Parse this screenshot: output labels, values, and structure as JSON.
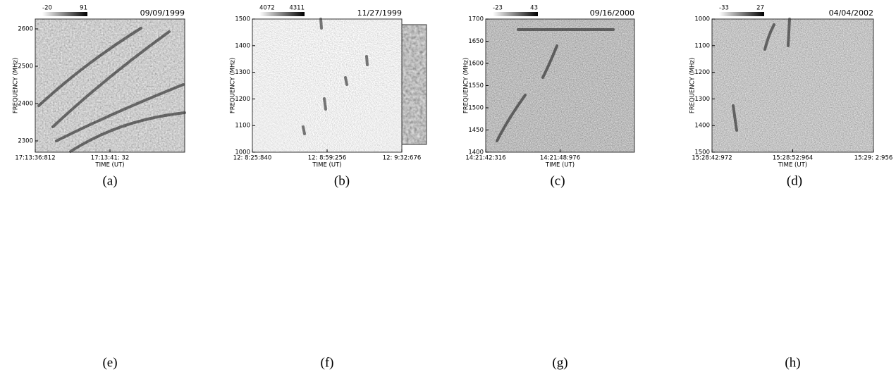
{
  "panels": [
    {
      "caption": "(a)"
    },
    {
      "caption": "(b)"
    },
    {
      "caption": "(c)"
    },
    {
      "caption": "(d)"
    },
    {
      "caption": "(e)",
      "date": "09/09/1999",
      "colorbar": [
        -20,
        91
      ],
      "yticks": [
        "2600",
        "2500",
        "2400",
        "2300"
      ],
      "xticks": [
        "17:13:36:812",
        "17:13:41: 32"
      ],
      "xlabel": "TIME (UT)",
      "ylabel": "FREQUENCY (MHz)"
    },
    {
      "caption": "(f)",
      "date": "11/27/1999",
      "colorbar": [
        4072,
        4311
      ],
      "yticks": [
        "1500",
        "1400",
        "1300",
        "1200",
        "1100",
        "1000"
      ],
      "xticks": [
        "12: 8:25:840",
        "12: 8:59:256",
        "12: 9:32:676"
      ],
      "xlabel": "TIME (UT)",
      "ylabel": "FREQUENCY (MHz)"
    },
    {
      "caption": "(g)",
      "date": "09/16/2000",
      "colorbar": [
        -23,
        43
      ],
      "yticks": [
        "1700",
        "1650",
        "1600",
        "1550",
        "1500",
        "1450",
        "1400"
      ],
      "xticks": [
        "14:21:42:316",
        "14:21:48:976"
      ],
      "xlabel": "TIME (UT)",
      "ylabel": "FREQUENCY (MHz)"
    },
    {
      "caption": "(h)",
      "date": "04/04/2002",
      "colorbar": [
        -33,
        27
      ],
      "yticks": [
        "1000",
        "1100",
        "1200",
        "1300",
        "1400",
        "1500"
      ],
      "xticks": [
        "15:28:42:972",
        "15:28:52:964",
        "15:29: 2:956"
      ],
      "xlabel": "TIME (UT)",
      "ylabel": "FREQUENCY (MHz)"
    }
  ]
}
